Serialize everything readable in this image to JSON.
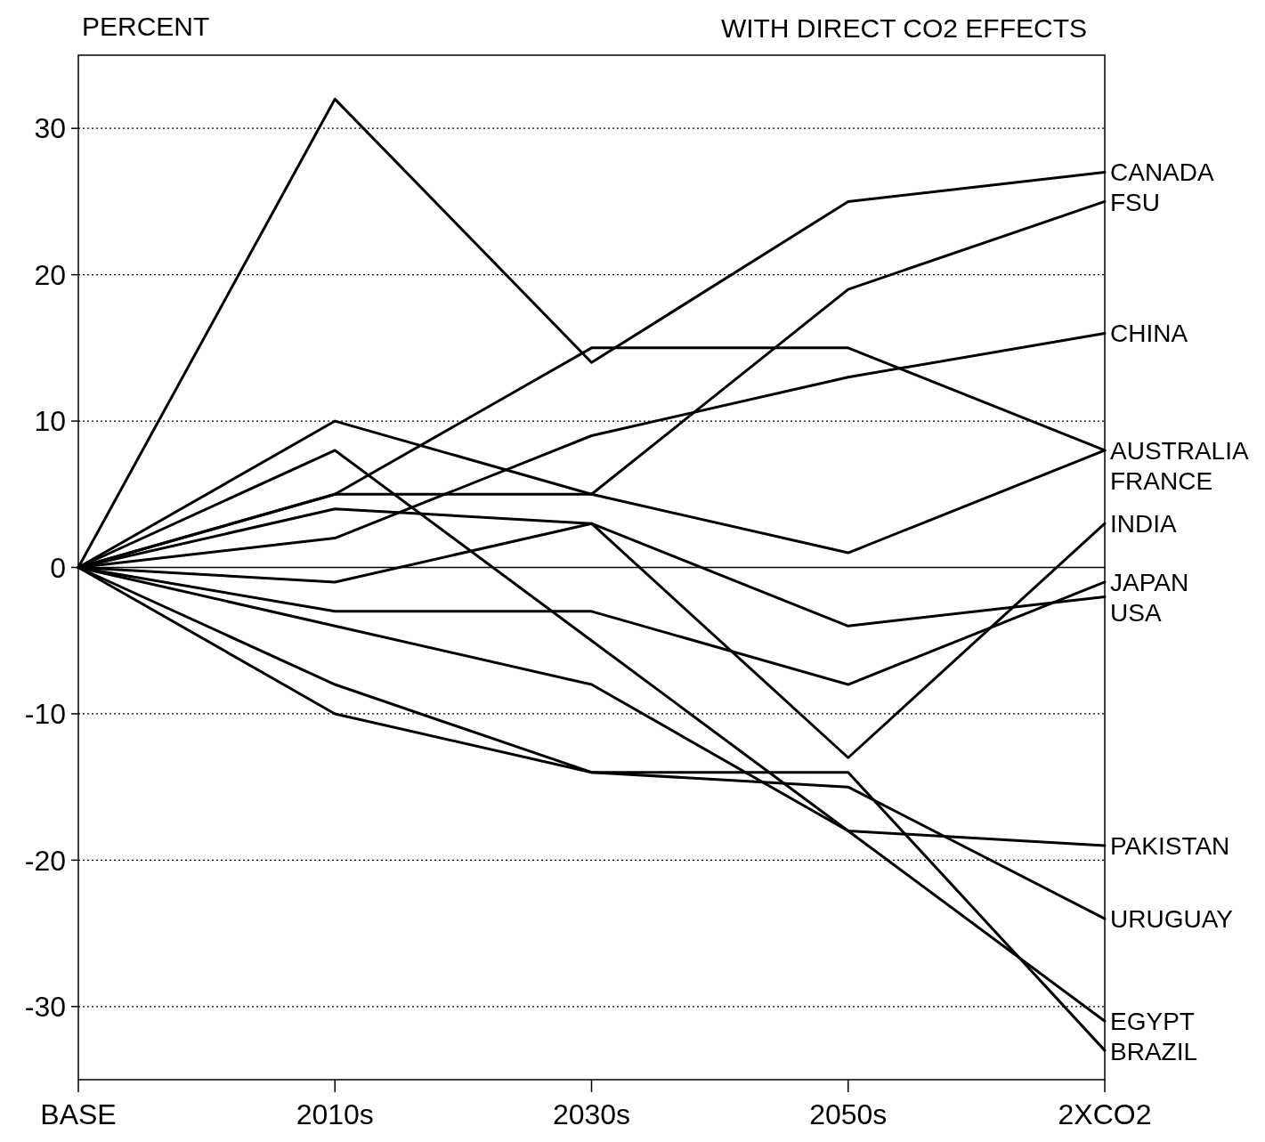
{
  "chart_data": {
    "type": "line",
    "title": "WITH DIRECT CO2 EFFECTS",
    "ylabel": "PERCENT",
    "categories": [
      "BASE",
      "2010s",
      "2030s",
      "2050s",
      "2XCO2"
    ],
    "ylim": [
      -35,
      35
    ],
    "yticks": [
      -30,
      -20,
      -10,
      0,
      10,
      20,
      30
    ],
    "grid": "y",
    "marker": "none",
    "line_style": "solid",
    "ref_lines": [
      {
        "axis": "y",
        "value": 0,
        "color": "#000000",
        "line_style": "solid"
      }
    ],
    "series": [
      {
        "name": "CANADA",
        "color": "#000000",
        "values": [
          0,
          32,
          14,
          25,
          27
        ]
      },
      {
        "name": "FSU",
        "color": "#000000",
        "values": [
          0,
          5,
          5,
          19,
          25
        ]
      },
      {
        "name": "CHINA",
        "color": "#000000",
        "values": [
          0,
          2,
          9,
          13,
          16
        ]
      },
      {
        "name": "AUSTRALIA",
        "color": "#000000",
        "values": [
          0,
          5,
          15,
          15,
          8
        ]
      },
      {
        "name": "FRANCE",
        "color": "#000000",
        "values": [
          0,
          10,
          5,
          1,
          8
        ]
      },
      {
        "name": "INDIA",
        "color": "#000000",
        "values": [
          0,
          -1,
          3,
          -13,
          3
        ]
      },
      {
        "name": "JAPAN",
        "color": "#000000",
        "values": [
          0,
          -3,
          -3,
          -8,
          -1
        ]
      },
      {
        "name": "USA",
        "color": "#000000",
        "values": [
          0,
          4,
          3,
          -4,
          -2
        ]
      },
      {
        "name": "PAKISTAN",
        "color": "#000000",
        "values": [
          0,
          -4,
          -8,
          -18,
          -19
        ]
      },
      {
        "name": "URUGUAY",
        "color": "#000000",
        "values": [
          0,
          -8,
          -14,
          -15,
          -24
        ]
      },
      {
        "name": "EGYPT",
        "color": "#000000",
        "values": [
          0,
          8,
          -5,
          -18,
          -31
        ]
      },
      {
        "name": "BRAZIL",
        "color": "#000000",
        "values": [
          0,
          -10,
          -14,
          -14,
          -33
        ]
      }
    ]
  }
}
